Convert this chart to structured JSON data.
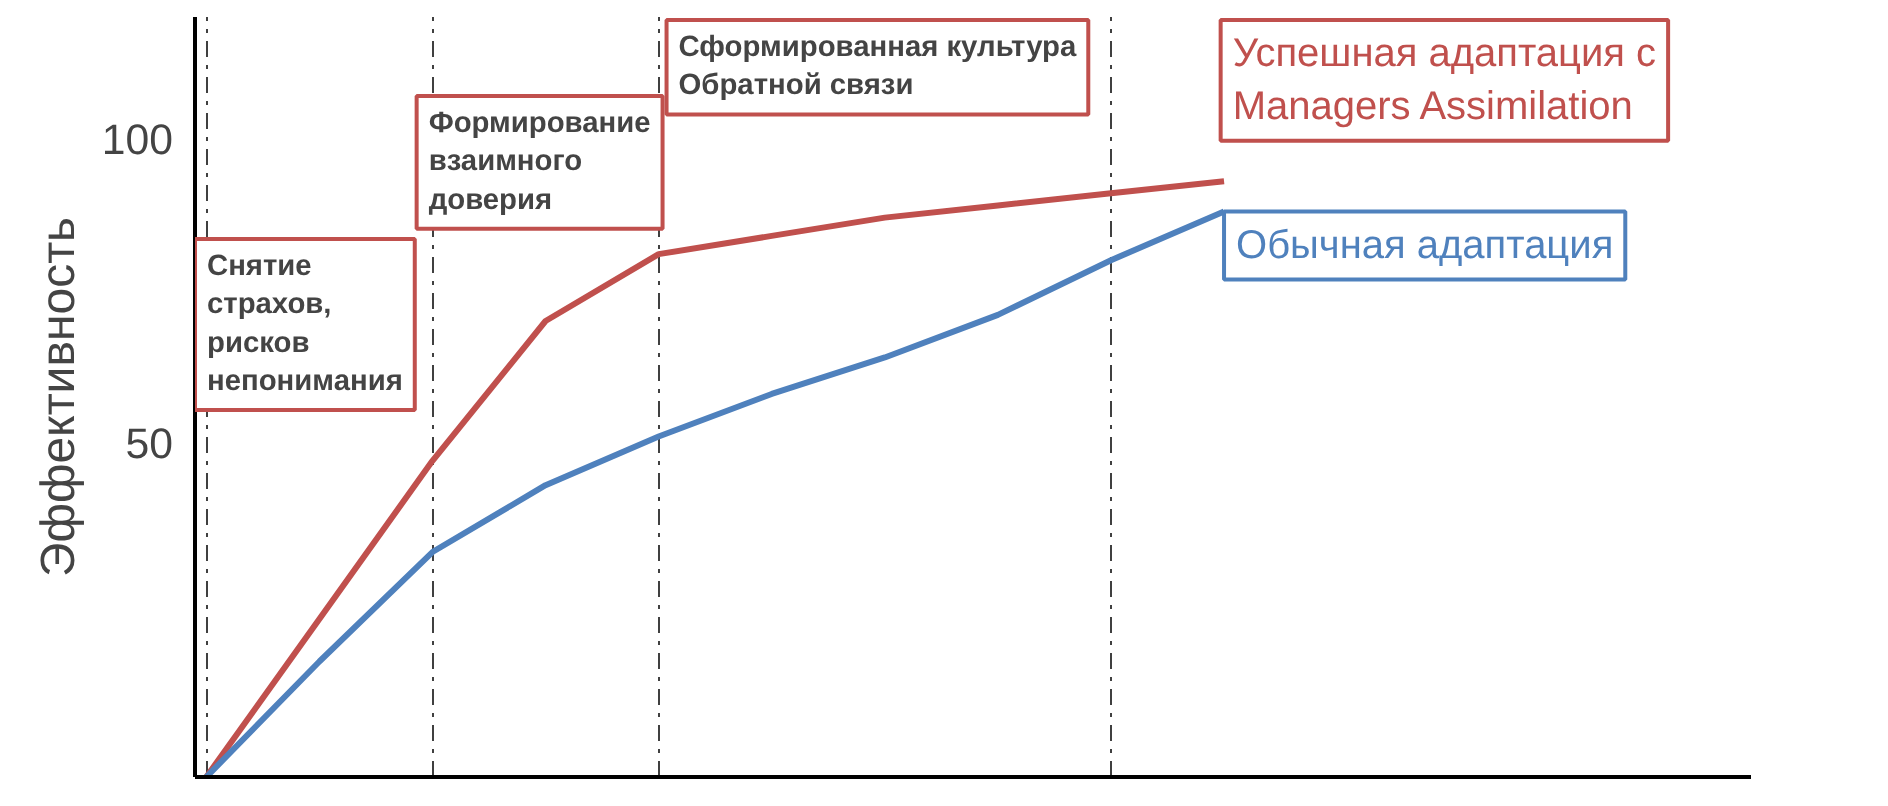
{
  "chart_data": {
    "type": "line",
    "ylabel": "Эффективность",
    "categories": [
      null,
      null,
      null,
      null,
      null,
      null,
      null,
      null,
      null,
      null
    ],
    "ylim": [
      -5,
      120
    ],
    "yticks": [
      50,
      100
    ],
    "tick_labels": "y",
    "grid": "x",
    "legend": false,
    "marker": "none",
    "line_style": "solid",
    "series": [
      {
        "name": "Успешная адаптация с Managers Assimilation",
        "color": "#c0504d",
        "values": [
          -5,
          21,
          47,
          70,
          81,
          84,
          87,
          89,
          91,
          93
        ]
      },
      {
        "name": "Обычная адаптация",
        "color": "#4f81bd",
        "values": [
          -5,
          14,
          32,
          43,
          51,
          58,
          64,
          71,
          80,
          88
        ]
      }
    ],
    "annotations": [
      "Снятие\nстрахов,\nрисков\nнепонимания",
      "Формирование\nвзаимного\nдоверия",
      "Сформированная культура\nОбратной связи"
    ]
  }
}
